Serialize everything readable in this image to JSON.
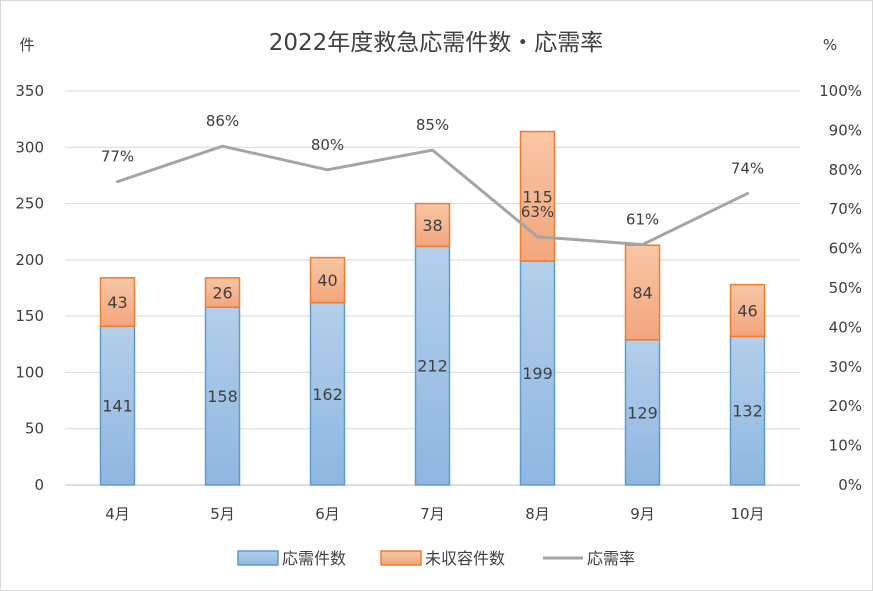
{
  "chart_data": {
    "type": "bar",
    "stacked": true,
    "title": "2022年度救急応需件数・応需率",
    "y_left_unit": "件",
    "y_right_unit": "%",
    "categories": [
      "4月",
      "5月",
      "6月",
      "7月",
      "8月",
      "9月",
      "10月"
    ],
    "ylim_left": [
      0,
      350
    ],
    "yticks_left": [
      "0",
      "50",
      "100",
      "150",
      "200",
      "250",
      "300",
      "350"
    ],
    "ylim_right": [
      0,
      100
    ],
    "yticks_right": [
      "0%",
      "10%",
      "20%",
      "30%",
      "40%",
      "50%",
      "60%",
      "70%",
      "80%",
      "90%",
      "100%"
    ],
    "grid": true,
    "legend_position": "bottom",
    "series": [
      {
        "name": "応需件数",
        "kind": "bar",
        "axis": "left",
        "values": [
          141,
          158,
          162,
          212,
          199,
          129,
          132
        ],
        "color": "#9dc3e6",
        "border": "#5b9bd5"
      },
      {
        "name": "未収容件数",
        "kind": "bar",
        "axis": "left",
        "values": [
          43,
          26,
          40,
          38,
          115,
          84,
          46
        ],
        "color": "#f4b183",
        "border": "#ed7d31"
      },
      {
        "name": "応需率",
        "kind": "line",
        "axis": "right",
        "values": [
          77,
          86,
          80,
          85,
          63,
          61,
          74
        ],
        "labels": [
          "77%",
          "86%",
          "80%",
          "85%",
          "63%",
          "61%",
          "74%"
        ],
        "color": "#a5a5a5"
      }
    ]
  }
}
